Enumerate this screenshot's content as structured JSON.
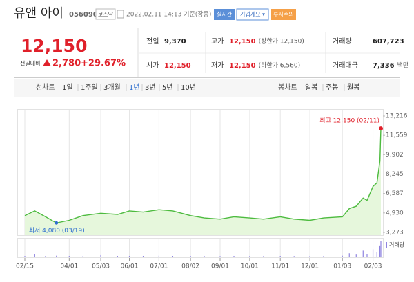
{
  "header": {
    "name": "유앤 아이",
    "code": "056090",
    "market": "코스닥",
    "timestamp": "2022.02.11 14:13 기준(장중)",
    "buttons": [
      "실시간",
      "기업개요 ▾",
      "투자주의"
    ]
  },
  "quote": {
    "price": "12,150",
    "change_label": "전일대비",
    "change": "2,780",
    "change_pct": "+29.67%",
    "stats": [
      {
        "label": "전일",
        "value": "9,370"
      },
      {
        "label": "고가",
        "value": "12,150",
        "note": "(상한가 12,150)"
      },
      {
        "label": "거래량",
        "value": "607,723"
      },
      {
        "label": "시가",
        "value": "12,150"
      },
      {
        "label": "저가",
        "value": "12,150",
        "note": "(하한가 6,560)"
      },
      {
        "label": "거래대금",
        "value": "7,336",
        "note": "백만"
      }
    ]
  },
  "tabs": {
    "line_label": "선차트",
    "line_periods": [
      "1일",
      "1주일",
      "3개월",
      "1년",
      "3년",
      "5년",
      "10년"
    ],
    "active": "1년",
    "candle_label": "봉차트",
    "candle_periods": [
      "일봉",
      "주봉",
      "월봉"
    ]
  },
  "chart_data": {
    "type": "line",
    "x": [
      "02/15",
      "02/25",
      "03/08",
      "03/19",
      "04/01",
      "04/15",
      "05/03",
      "05/20",
      "06/01",
      "06/15",
      "07/01",
      "07/15",
      "08/02",
      "08/16",
      "09/01",
      "09/15",
      "10/01",
      "10/15",
      "11/01",
      "11/15",
      "12/01",
      "12/15",
      "01/03",
      "01/10",
      "01/17",
      "01/24",
      "01/28",
      "02/03",
      "02/07",
      "02/10",
      "02/11"
    ],
    "series": [
      {
        "name": "주가",
        "color": "#4dbb3f",
        "values": [
          4700,
          5100,
          4600,
          4080,
          4300,
          4700,
          4900,
          4800,
          5100,
          5000,
          5200,
          5100,
          4700,
          4500,
          4400,
          4600,
          4500,
          4400,
          4600,
          4400,
          4300,
          4500,
          4600,
          5300,
          5500,
          6200,
          6000,
          7200,
          7500,
          9370,
          12150
        ]
      }
    ],
    "max_label": "최고 12,150 (02/11)",
    "min_label": "최저 4,080 (03/19)",
    "ylim": [
      3273,
      13216
    ],
    "yticks": [
      {
        "value": 3273,
        "label": "3,273"
      },
      {
        "value": 4930,
        "label": "4,930"
      },
      {
        "value": 6587,
        "label": "6,587"
      },
      {
        "value": 8245,
        "label": "8,245"
      },
      {
        "value": 9902,
        "label": "9,902"
      },
      {
        "value": 11559,
        "label": "11,559"
      },
      {
        "value": 13216,
        "label": "13,216"
      }
    ],
    "xticks": [
      "02/15",
      "04/01",
      "05/03",
      "06/01",
      "07/01",
      "08/02",
      "09/01",
      "10/01",
      "11/01",
      "12/01",
      "01/03",
      "02/03"
    ],
    "grid": true,
    "volume": {
      "label": "거래량",
      "color": "#8f84e0",
      "ylim": [
        0,
        650000
      ],
      "values": [
        40000,
        120000,
        30000,
        60000,
        25000,
        50000,
        80000,
        30000,
        40000,
        30000,
        60000,
        30000,
        25000,
        20000,
        20000,
        30000,
        25000,
        20000,
        30000,
        20000,
        25000,
        30000,
        60000,
        150000,
        100000,
        250000,
        120000,
        300000,
        200000,
        420000,
        607723
      ]
    }
  }
}
